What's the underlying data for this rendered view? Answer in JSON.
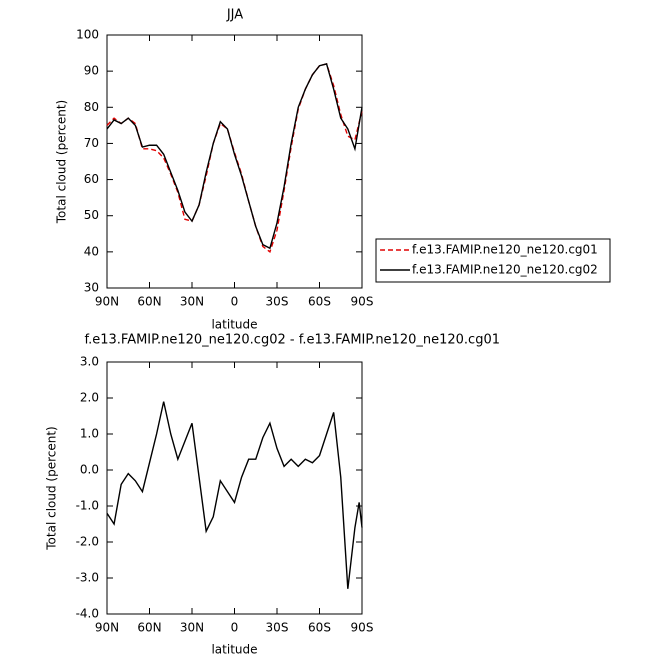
{
  "chart_data": [
    {
      "type": "line",
      "title": "JJA",
      "xlabel": "latitude",
      "ylabel": "Total cloud (percent)",
      "x": [
        90,
        85,
        80,
        75,
        70,
        65,
        60,
        55,
        50,
        45,
        40,
        35,
        30,
        25,
        20,
        15,
        10,
        5,
        0,
        -5,
        -10,
        -15,
        -20,
        -25,
        -30,
        -35,
        -40,
        -45,
        -50,
        -55,
        -60,
        -65,
        -70,
        -75,
        -80,
        -85,
        -90
      ],
      "xlim": [
        90,
        -90
      ],
      "xticks": [
        {
          "value": 90,
          "label": "90N"
        },
        {
          "value": 60,
          "label": "60N"
        },
        {
          "value": 30,
          "label": "30N"
        },
        0,
        {
          "value": -30,
          "label": "30S"
        },
        {
          "value": -60,
          "label": "60S"
        },
        {
          "value": -90,
          "label": "90S"
        }
      ],
      "ylim": [
        30,
        100
      ],
      "yticks": [
        30,
        40,
        50,
        60,
        70,
        80,
        90,
        100
      ],
      "series": [
        {
          "name": "f.e13.FAMIP.ne120_ne120.cg01",
          "color": "#e00000",
          "linestyle": "dashed",
          "values": [
            75,
            77,
            75.5,
            77,
            75.5,
            68.5,
            68.5,
            68,
            66,
            61.5,
            56.5,
            49,
            48.5,
            53,
            61,
            70,
            75.5,
            74,
            67.5,
            61.5,
            54,
            47,
            41.5,
            40,
            46,
            57,
            69,
            79.5,
            85,
            89,
            91.5,
            92,
            86,
            78,
            72,
            71,
            79
          ]
        },
        {
          "name": "f.e13.FAMIP.ne120_ne120.cg02",
          "color": "#000000",
          "linestyle": "solid",
          "values": [
            74,
            76.5,
            75.5,
            77,
            75,
            69,
            69.5,
            69.5,
            67,
            62,
            57,
            51,
            48.5,
            53,
            62,
            70,
            76,
            74,
            67,
            61,
            54,
            47,
            42,
            41,
            48,
            58,
            70,
            80,
            85,
            89,
            91.5,
            92,
            85,
            77,
            74,
            68.5,
            80
          ]
        }
      ],
      "legend": "right"
    },
    {
      "type": "line",
      "title": "f.e13.FAMIP.ne120_ne120.cg02 - f.e13.FAMIP.ne120_ne120.cg01",
      "xlabel": "latitude",
      "ylabel": "Total cloud (percent)",
      "x": [
        90,
        85,
        80,
        75,
        70,
        65,
        60,
        55,
        50,
        45,
        40,
        35,
        30,
        25,
        20,
        15,
        10,
        5,
        0,
        -5,
        -10,
        -15,
        -20,
        -25,
        -30,
        -35,
        -40,
        -45,
        -50,
        -55,
        -60,
        -65,
        -70,
        -75,
        -80,
        -85,
        -88,
        -90
      ],
      "xlim": [
        90,
        -90
      ],
      "xticks": [
        {
          "value": 90,
          "label": "90N"
        },
        {
          "value": 60,
          "label": "60N"
        },
        {
          "value": 30,
          "label": "30N"
        },
        0,
        {
          "value": -30,
          "label": "30S"
        },
        {
          "value": -60,
          "label": "60S"
        },
        {
          "value": -90,
          "label": "90S"
        }
      ],
      "ylim": [
        -4,
        3
      ],
      "yticks": [
        {
          "value": -4,
          "label": "-4.0"
        },
        {
          "value": -3,
          "label": "-3.0"
        },
        {
          "value": -2,
          "label": "-2.0"
        },
        {
          "value": -1,
          "label": "-1.0"
        },
        {
          "value": 0,
          "label": "0.0"
        },
        {
          "value": 1,
          "label": "1.0"
        },
        {
          "value": 2,
          "label": "2.0"
        },
        {
          "value": 3,
          "label": "3.0"
        }
      ],
      "series": [
        {
          "color": "#000000",
          "linestyle": "solid",
          "values": [
            -1.2,
            -1.5,
            -0.4,
            -0.1,
            -0.3,
            -0.6,
            0.2,
            1.0,
            1.9,
            1.0,
            0.3,
            0.8,
            1.3,
            -0.2,
            -1.7,
            -1.3,
            -0.3,
            -0.6,
            -0.9,
            -0.2,
            0.3,
            0.3,
            0.9,
            1.3,
            0.6,
            0.1,
            0.3,
            0.1,
            0.3,
            0.2,
            0.4,
            1.0,
            1.6,
            -0.2,
            -3.3,
            -1.6,
            -0.9,
            -1.6
          ]
        }
      ]
    }
  ]
}
